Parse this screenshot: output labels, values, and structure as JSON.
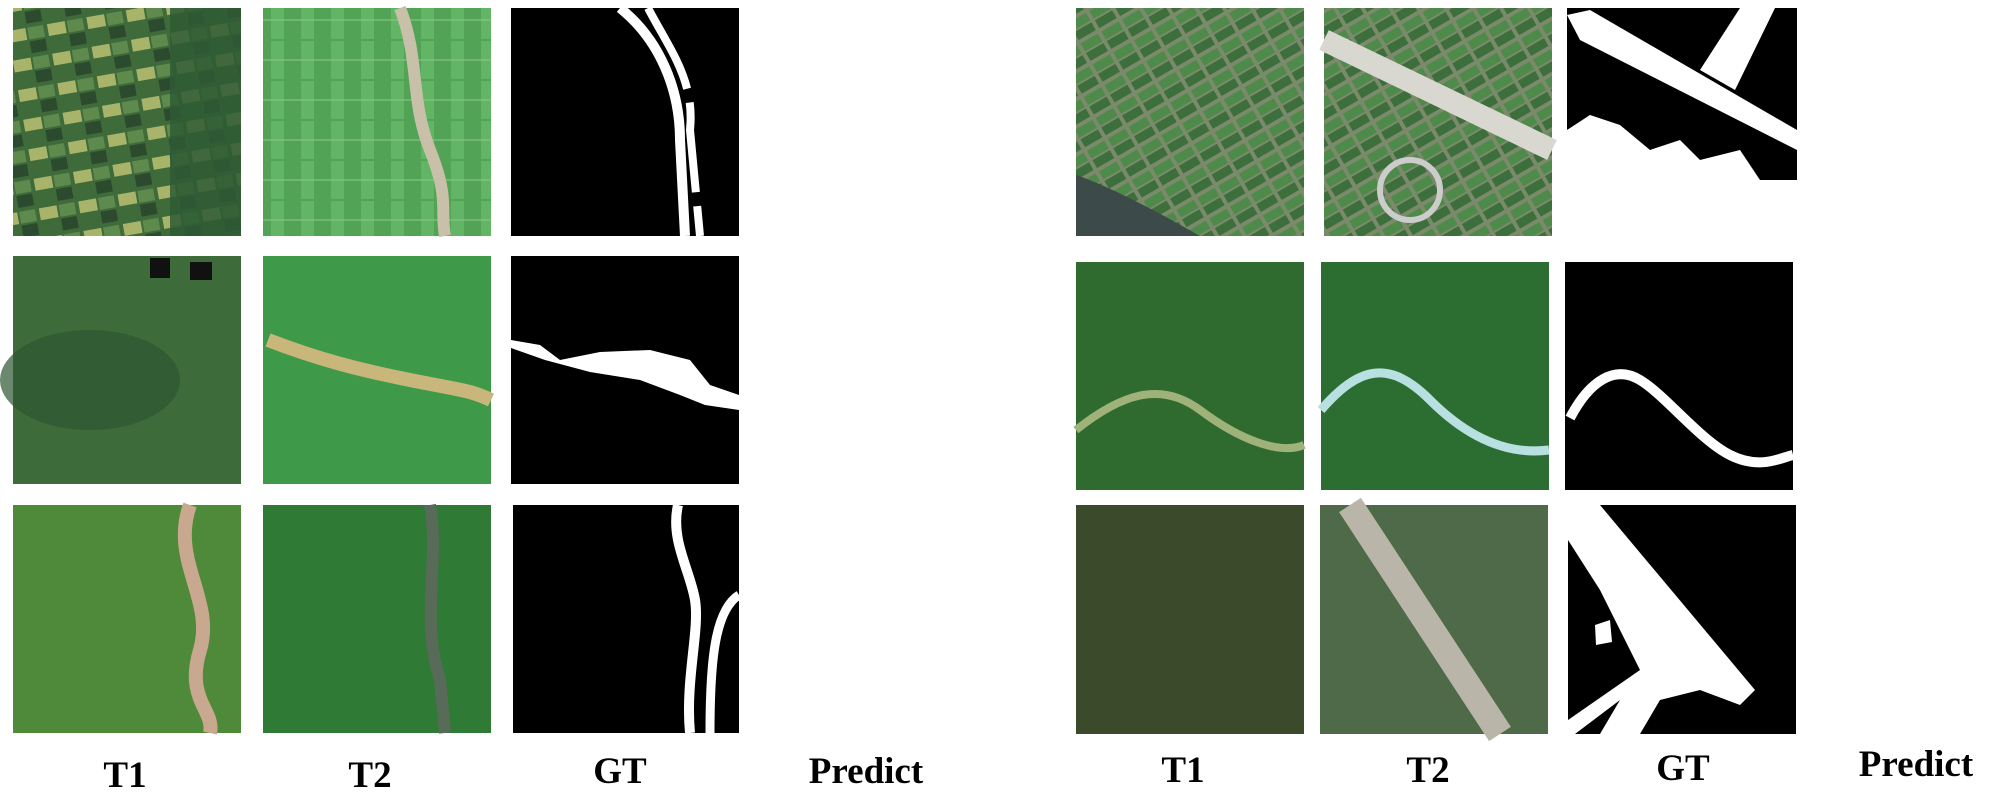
{
  "panels": [
    {
      "labels": [
        "T1",
        "T2",
        "GT",
        "Predict"
      ]
    },
    {
      "labels": [
        "T1",
        "T2",
        "GT",
        "Predict"
      ]
    }
  ]
}
